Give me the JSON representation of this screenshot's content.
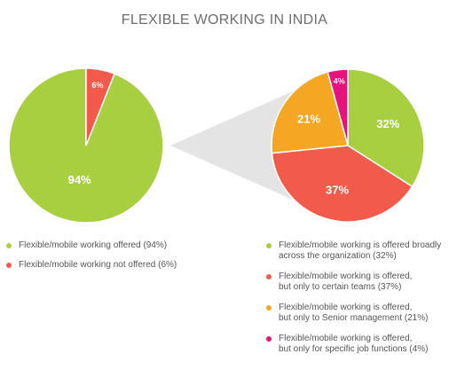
{
  "title": "FLEXIBLE WORKING IN INDIA",
  "colors": {
    "green": "#a8cf3f",
    "red": "#f25b4c",
    "orange": "#f5a623",
    "magenta": "#e8127c",
    "connector": "#e4e4e4"
  },
  "chart_data": [
    {
      "type": "pie",
      "slices": [
        {
          "label": "94%",
          "value": 94,
          "legend": "Flexible/mobile working offered (94%)",
          "color": "#a8cf3f"
        },
        {
          "label": "6%",
          "value": 6,
          "legend": "Flexible/mobile working not offered (6%)",
          "color": "#f25b4c"
        }
      ]
    },
    {
      "type": "pie",
      "slices": [
        {
          "label": "32%",
          "value": 32,
          "legend": "Flexible/mobile working is offered broadly\nacross the organization (32%)",
          "color": "#a8cf3f"
        },
        {
          "label": "37%",
          "value": 37,
          "legend": "Flexible/mobile working is offered,\nbut only to certain teams (37%)",
          "color": "#f25b4c"
        },
        {
          "label": "21%",
          "value": 21,
          "legend": "Flexible/mobile working is offered,\nbut only to Senior management (21%)",
          "color": "#f5a623"
        },
        {
          "label": "4%",
          "value": 4,
          "legend": "Flexible/mobile working is offered,\nbut only for specific job functions (4%)",
          "color": "#e8127c"
        }
      ]
    }
  ]
}
